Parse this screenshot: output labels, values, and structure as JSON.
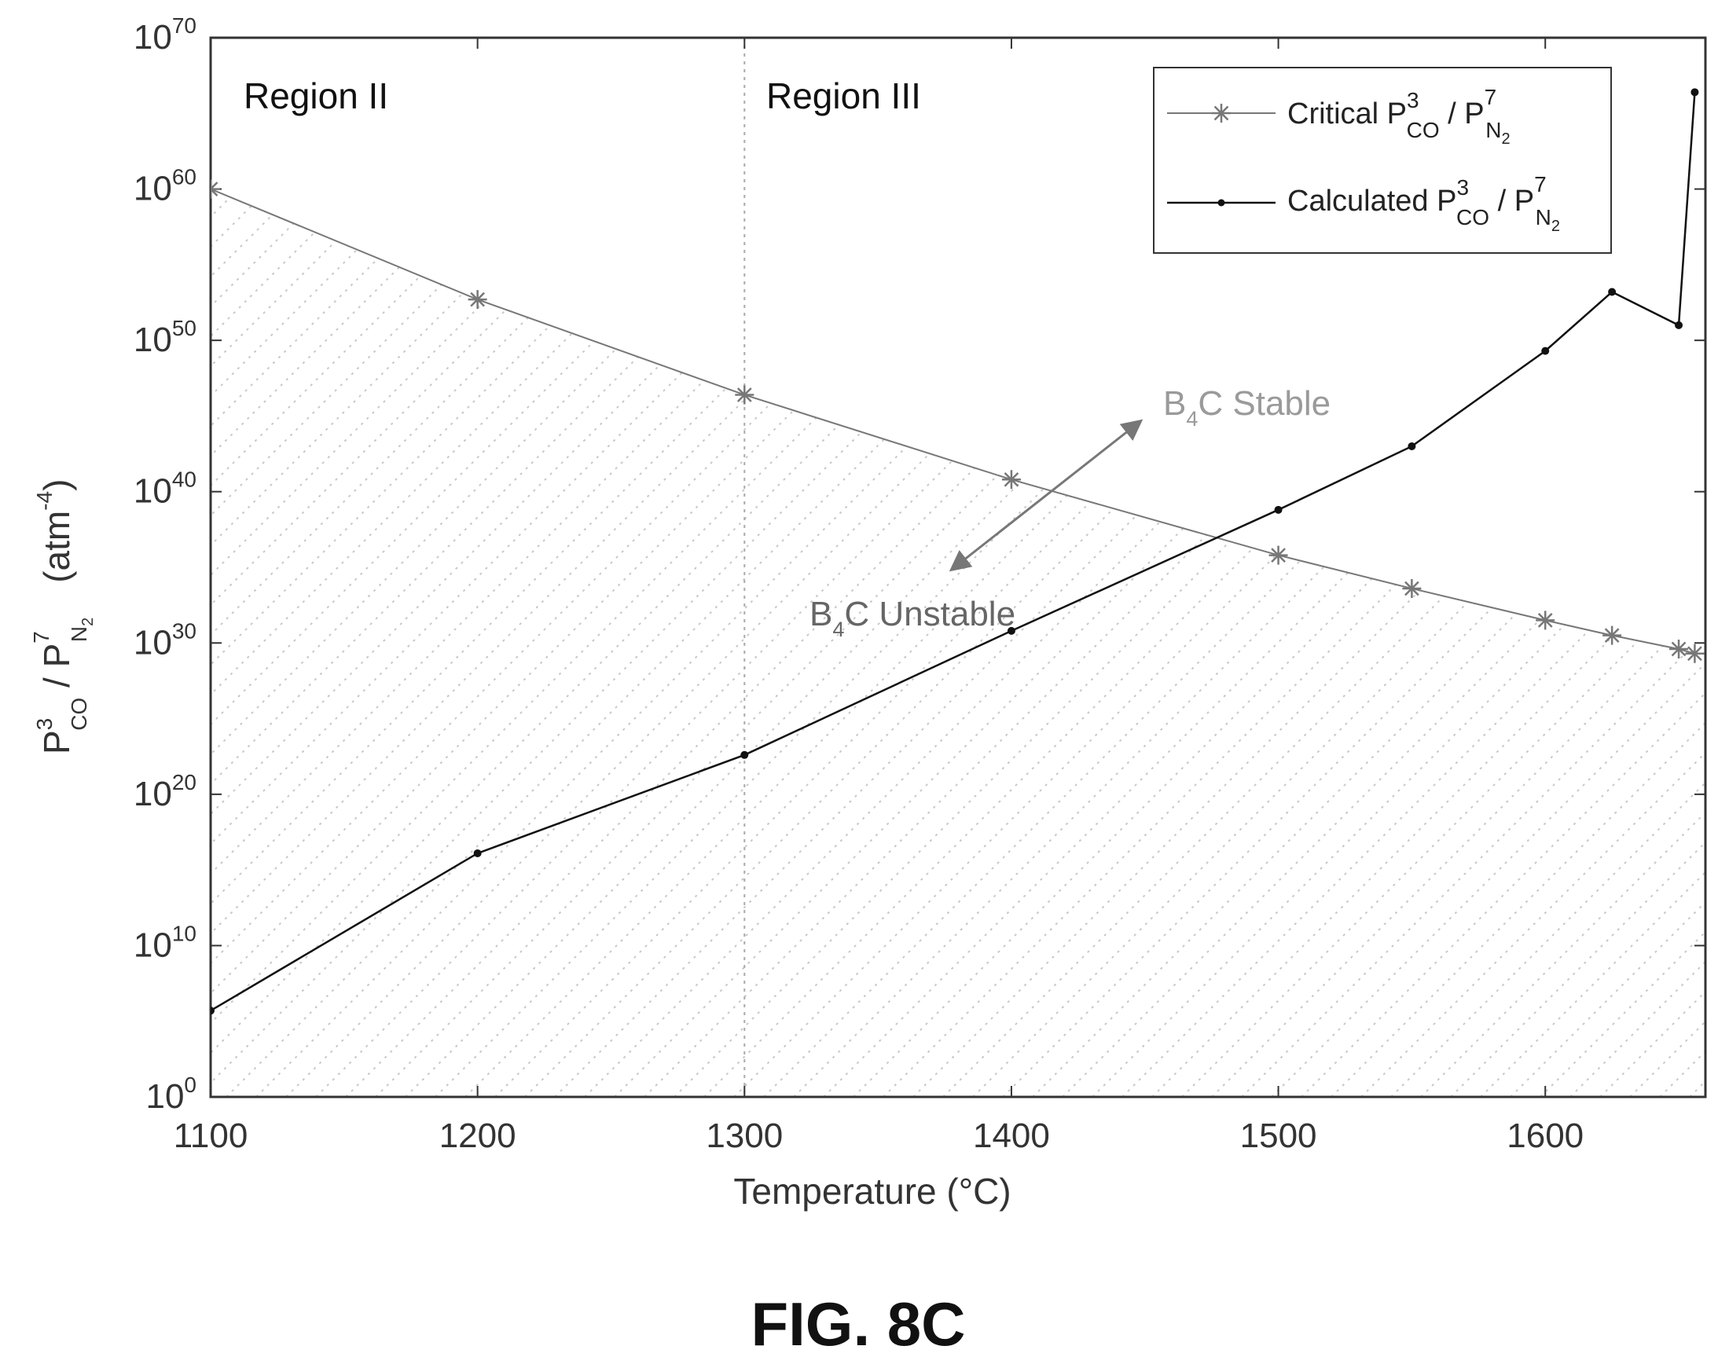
{
  "chart_data": {
    "type": "line",
    "xlabel": "Temperature (°C)",
    "ylabel_parts": {
      "p": "P",
      "co_exp": "3",
      "co_sub": "CO",
      "slash": " / P",
      "n2_exp": "7",
      "n2_sub": "N",
      "n2_sub2": "2",
      "unit": "(atm",
      "unit_exp": "-4",
      "unit_close": ")"
    },
    "x_ticks": [
      "1100",
      "1200",
      "1300",
      "1400",
      "1500",
      "1600"
    ],
    "x_tick_values": [
      1100,
      1200,
      1300,
      1400,
      1500,
      1600
    ],
    "xlim": [
      1100,
      1660
    ],
    "y_scale": "log",
    "ylim_exponent": [
      0,
      70
    ],
    "y_tick_base": "10",
    "y_tick_exponents": [
      "0",
      "10",
      "20",
      "30",
      "40",
      "50",
      "60",
      "70"
    ],
    "y_tick_exponent_values": [
      0,
      10,
      20,
      30,
      40,
      50,
      60,
      70
    ],
    "grid": false,
    "legend_position": "top-right",
    "series": [
      {
        "key": "critical",
        "legend": {
          "prefix": "Critical P",
          "co_exp": "3",
          "co_sub": "CO",
          "slash": " / P",
          "n2_exp": "7",
          "n2_sub": "N",
          "n2_sub2": "2"
        },
        "marker": "asterisk",
        "color": "#777777",
        "x": [
          1100,
          1200,
          1300,
          1400,
          1500,
          1550,
          1600,
          1625,
          1650,
          1656
        ],
        "log10_y": [
          60,
          52.7,
          46.4,
          40.8,
          35.8,
          33.6,
          31.5,
          30.5,
          29.6,
          29.3
        ]
      },
      {
        "key": "calculated",
        "legend": {
          "prefix": "Calculated P",
          "co_exp": "3",
          "co_sub": "CO",
          "slash": " / P",
          "n2_exp": "7",
          "n2_sub": "N",
          "n2_sub2": "2"
        },
        "marker": "dot",
        "color": "#111111",
        "x": [
          1100,
          1200,
          1300,
          1400,
          1500,
          1550,
          1600,
          1625,
          1650,
          1656
        ],
        "log10_y": [
          5.7,
          16.1,
          22.6,
          30.8,
          38.8,
          43.0,
          49.3,
          53.2,
          51.0,
          66.4
        ]
      }
    ],
    "region_divider_x": 1300,
    "annotations": {
      "region2": "Region II",
      "region3": "Region III",
      "stable": {
        "b": "B",
        "sub": "4",
        "rest": "C Stable"
      },
      "unstable": {
        "b": "B",
        "sub": "4",
        "rest": "C Unstable"
      }
    },
    "colors": {
      "axis": "#333333",
      "hatch": "#c8c8c8",
      "divider": "#aaaaaa",
      "stable_text": "#9a9a9a",
      "unstable_text": "#666666",
      "arrow": "#777777"
    }
  },
  "figure_label": "FIG. 8C"
}
